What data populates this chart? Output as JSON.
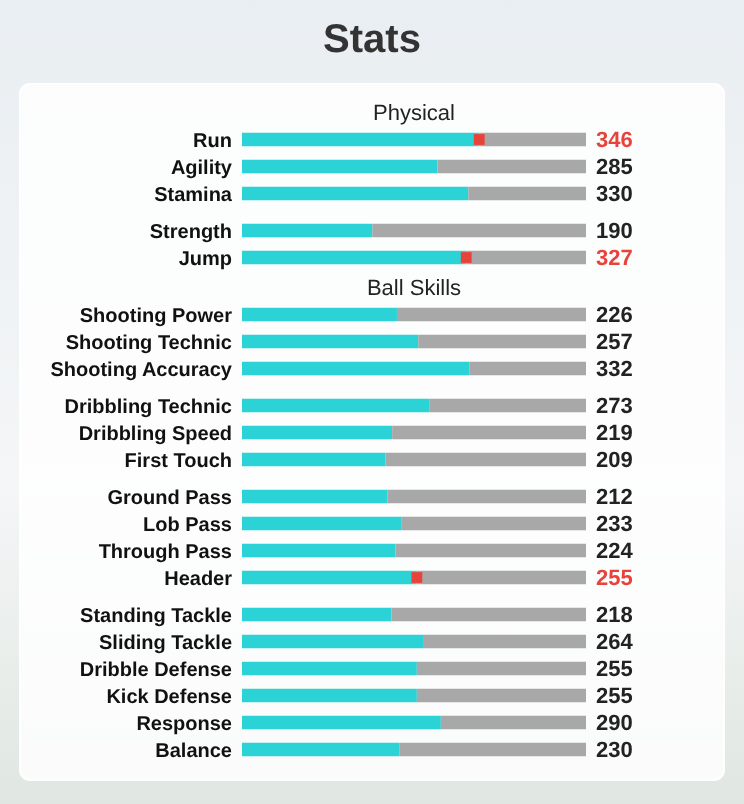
{
  "chart_data": [
    {
      "type": "bar",
      "orientation": "horizontal",
      "title": "Stats",
      "subtitle": "Physical",
      "categories": [
        "Run",
        "Agility",
        "Stamina"
      ],
      "data_labels": true,
      "tick_labels": false,
      "series": [
        {
          "color": "#2bd3d6",
          "values": [
            346,
            285,
            330
          ]
        },
        {
          "type": "scatter",
          "marker": "square",
          "color": "#e8433b",
          "values": [
            346,
            null,
            null
          ],
          "value_labels": [
            null,
            null,
            null
          ]
        }
      ]
    },
    {
      "type": "bar",
      "orientation": "horizontal",
      "categories": [
        "Strength",
        "Jump"
      ],
      "data_labels": true,
      "tick_labels": false,
      "series": [
        {
          "color": "#2bd3d6",
          "values": [
            190,
            327
          ]
        },
        {
          "type": "scatter",
          "marker": "square",
          "color": "#e8433b",
          "values": [
            null,
            327
          ],
          "value_labels": [
            null,
            null
          ]
        }
      ]
    },
    {
      "type": "bar",
      "orientation": "horizontal",
      "subtitle": "Ball Skills",
      "categories": [
        "Shooting Power",
        "Shooting Technic",
        "Shooting Accuracy"
      ],
      "data_labels": true,
      "tick_labels": false,
      "series": [
        {
          "color": "#2bd3d6",
          "values": [
            226,
            257,
            332
          ]
        }
      ]
    },
    {
      "type": "bar",
      "orientation": "horizontal",
      "categories": [
        "Dribbling Technic",
        "Dribbling Speed",
        "First Touch"
      ],
      "data_labels": true,
      "tick_labels": false,
      "series": [
        {
          "color": "#2bd3d6",
          "values": [
            273,
            219,
            209
          ]
        }
      ]
    },
    {
      "type": "bar",
      "orientation": "horizontal",
      "categories": [
        "Ground Pass",
        "Lob Pass",
        "Through Pass",
        "Header"
      ],
      "data_labels": true,
      "tick_labels": false,
      "series": [
        {
          "color": "#2bd3d6",
          "values": [
            212,
            233,
            224,
            255
          ]
        },
        {
          "type": "scatter",
          "marker": "square",
          "color": "#e8433b",
          "values": [
            null,
            null,
            null,
            255
          ],
          "value_labels": [
            null,
            null,
            null,
            null
          ]
        }
      ]
    },
    {
      "type": "bar",
      "orientation": "horizontal",
      "categories": [
        "Standing Tackle",
        "Sliding Tackle",
        "Dribble Defense",
        "Kick Defense",
        "Response",
        "Balance"
      ],
      "data_labels": true,
      "tick_labels": false,
      "series": [
        {
          "color": "#2bd3d6",
          "values": [
            218,
            264,
            255,
            255,
            290,
            230
          ]
        }
      ]
    }
  ]
}
